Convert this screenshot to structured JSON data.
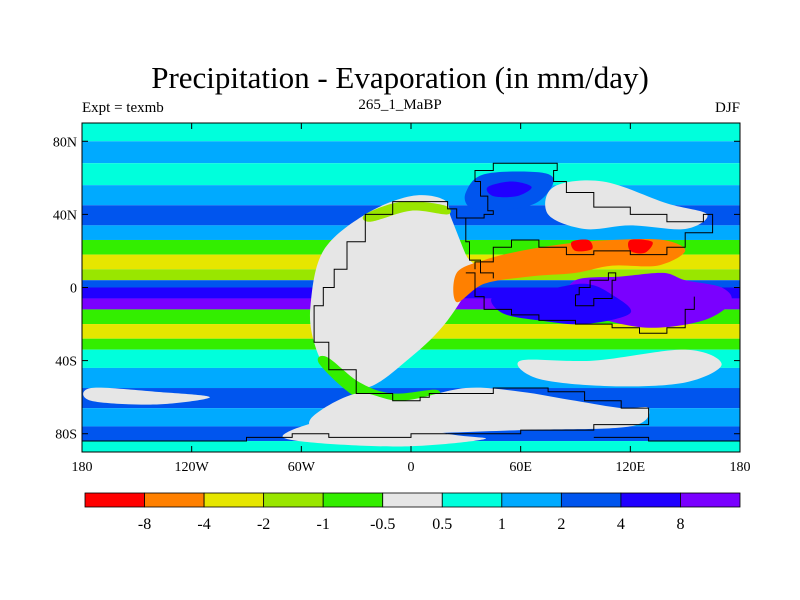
{
  "chart_data": {
    "type": "heatmap",
    "title": "Precipitation - Evaporation (in mm/day)",
    "subtitle_left": "Expt = texmb",
    "subtitle_center": "265_1_MaBP",
    "subtitle_right": "DJF",
    "x_range": [
      -180,
      180
    ],
    "y_range": [
      -90,
      90
    ],
    "x_ticks": [
      {
        "value": -180,
        "label": "180"
      },
      {
        "value": -120,
        "label": "120W"
      },
      {
        "value": -60,
        "label": "60W"
      },
      {
        "value": 0,
        "label": "0"
      },
      {
        "value": 60,
        "label": "60E"
      },
      {
        "value": 120,
        "label": "120E"
      },
      {
        "value": 180,
        "label": "180"
      }
    ],
    "y_ticks": [
      {
        "value": 80,
        "label": "80N"
      },
      {
        "value": 40,
        "label": "40N"
      },
      {
        "value": 0,
        "label": "0"
      },
      {
        "value": -40,
        "label": "40S"
      },
      {
        "value": -80,
        "label": "80S"
      }
    ],
    "colorbar": {
      "colors": [
        "#ff0000",
        "#ff8000",
        "#e6e600",
        "#99e600",
        "#33ee00",
        "#e6e6e6",
        "#00ffdc",
        "#00aaff",
        "#0055ee",
        "#2000ff",
        "#7a00ff"
      ],
      "labels": [
        "-8",
        "-4",
        "-2",
        "-1",
        "-0.5",
        "0.5",
        "1",
        "2",
        "4",
        "8"
      ]
    },
    "bands": [
      {
        "lat": [
          80,
          90
        ],
        "level": 6
      },
      {
        "lat": [
          68,
          80
        ],
        "level": 7
      },
      {
        "lat": [
          56,
          68
        ],
        "level": 6
      },
      {
        "lat": [
          45,
          56
        ],
        "level": 7
      },
      {
        "lat": [
          34,
          45
        ],
        "level": 8
      },
      {
        "lat": [
          26,
          34
        ],
        "level": 7
      },
      {
        "lat": [
          18,
          26
        ],
        "level": 4
      },
      {
        "lat": [
          10,
          18
        ],
        "level": 2
      },
      {
        "lat": [
          4,
          10
        ],
        "level": 3
      },
      {
        "lat": [
          0,
          4
        ],
        "level": 8
      },
      {
        "lat": [
          -6,
          0
        ],
        "level": 9
      },
      {
        "lat": [
          -12,
          -6
        ],
        "level": 10
      },
      {
        "lat": [
          -20,
          -12
        ],
        "level": 4
      },
      {
        "lat": [
          -28,
          -20
        ],
        "level": 2
      },
      {
        "lat": [
          -34,
          -28
        ],
        "level": 4
      },
      {
        "lat": [
          -44,
          -34
        ],
        "level": 6
      },
      {
        "lat": [
          -55,
          -44
        ],
        "level": 7
      },
      {
        "lat": [
          -66,
          -55
        ],
        "level": 8
      },
      {
        "lat": [
          -76,
          -66
        ],
        "level": 7
      },
      {
        "lat": [
          -84,
          -76
        ],
        "level": 8
      },
      {
        "lat": [
          -90,
          -84
        ],
        "level": 6
      }
    ],
    "regions": [
      {
        "name": "western-continent-interior",
        "level": 5,
        "points": [
          [
            -55,
            -10
          ],
          [
            -48,
            20
          ],
          [
            -25,
            40
          ],
          [
            0,
            50
          ],
          [
            18,
            48
          ],
          [
            22,
            38
          ],
          [
            30,
            18
          ],
          [
            35,
            8
          ],
          [
            20,
            -18
          ],
          [
            0,
            -38
          ],
          [
            -25,
            -55
          ],
          [
            -45,
            -45
          ],
          [
            -53,
            -30
          ]
        ]
      },
      {
        "name": "western-continent-north-margin",
        "level": 3,
        "points": [
          [
            -25,
            40
          ],
          [
            -5,
            47
          ],
          [
            18,
            45
          ],
          [
            20,
            40
          ],
          [
            0,
            42
          ],
          [
            -22,
            36
          ]
        ]
      },
      {
        "name": "western-continent-south-margin",
        "level": 4,
        "points": [
          [
            -50,
            -42
          ],
          [
            -30,
            -60
          ],
          [
            -10,
            -64
          ],
          [
            12,
            -62
          ],
          [
            14,
            -56
          ],
          [
            -10,
            -58
          ],
          [
            -28,
            -52
          ],
          [
            -46,
            -38
          ]
        ]
      },
      {
        "name": "southern-continent-interior",
        "level": 5,
        "points": [
          [
            -30,
            -58
          ],
          [
            -5,
            -62
          ],
          [
            30,
            -55
          ],
          [
            60,
            -57
          ],
          [
            90,
            -62
          ],
          [
            115,
            -66
          ],
          [
            130,
            -66
          ],
          [
            120,
            -76
          ],
          [
            60,
            -78
          ],
          [
            0,
            -80
          ],
          [
            -45,
            -80
          ],
          [
            -55,
            -72
          ]
        ]
      },
      {
        "name": "polar-cap",
        "level": 5,
        "points": [
          [
            -70,
            -82
          ],
          [
            -30,
            -70
          ],
          [
            20,
            -80
          ],
          [
            40,
            -83
          ],
          [
            -10,
            -87
          ]
        ]
      },
      {
        "name": "equatorial-drying-belt",
        "level": 1,
        "points": [
          [
            25,
            8
          ],
          [
            40,
            15
          ],
          [
            60,
            20
          ],
          [
            85,
            24
          ],
          [
            110,
            26
          ],
          [
            138,
            26
          ],
          [
            150,
            20
          ],
          [
            135,
            12
          ],
          [
            110,
            12
          ],
          [
            90,
            8
          ],
          [
            65,
            6
          ],
          [
            40,
            2
          ],
          [
            25,
            -8
          ]
        ]
      },
      {
        "name": "asia-red-core",
        "level": 0,
        "points": [
          [
            88,
            25
          ],
          [
            97,
            26
          ],
          [
            99,
            21
          ],
          [
            90,
            20
          ]
        ]
      },
      {
        "name": "asia-red-core-east",
        "level": 0,
        "points": [
          [
            120,
            26
          ],
          [
            132,
            25
          ],
          [
            128,
            19
          ],
          [
            120,
            20
          ]
        ]
      },
      {
        "name": "asia-moist-north",
        "level": 8,
        "points": [
          [
            30,
            52
          ],
          [
            40,
            62
          ],
          [
            70,
            63
          ],
          [
            78,
            58
          ],
          [
            68,
            46
          ],
          [
            45,
            42
          ],
          [
            32,
            44
          ]
        ]
      },
      {
        "name": "asia-moist-core",
        "level": 9,
        "points": [
          [
            42,
            55
          ],
          [
            55,
            58
          ],
          [
            66,
            55
          ],
          [
            58,
            50
          ],
          [
            45,
            50
          ]
        ]
      },
      {
        "name": "asia-interior-dry",
        "level": 5,
        "points": [
          [
            78,
            55
          ],
          [
            105,
            58
          ],
          [
            140,
            46
          ],
          [
            162,
            40
          ],
          [
            150,
            32
          ],
          [
            120,
            34
          ],
          [
            95,
            32
          ],
          [
            75,
            40
          ]
        ]
      },
      {
        "name": "eastern-tropical-wet",
        "level": 10,
        "points": [
          [
            90,
            4
          ],
          [
            115,
            6
          ],
          [
            138,
            8
          ],
          [
            150,
            4
          ],
          [
            170,
            0
          ],
          [
            175,
            -8
          ],
          [
            160,
            -18
          ],
          [
            130,
            -22
          ],
          [
            100,
            -16
          ],
          [
            85,
            -8
          ]
        ]
      },
      {
        "name": "eastern-tropical-core",
        "level": 9,
        "points": [
          [
            45,
            -5
          ],
          [
            70,
            -2
          ],
          [
            95,
            2
          ],
          [
            110,
            -4
          ],
          [
            120,
            -14
          ],
          [
            95,
            -20
          ],
          [
            70,
            -18
          ],
          [
            50,
            -14
          ]
        ]
      },
      {
        "name": "southern-basin-dry",
        "level": 5,
        "points": [
          [
            60,
            -40
          ],
          [
            100,
            -40
          ],
          [
            150,
            -34
          ],
          [
            170,
            -42
          ],
          [
            150,
            -52
          ],
          [
            110,
            -54
          ],
          [
            70,
            -50
          ]
        ]
      },
      {
        "name": "south-pacific-dry-patch",
        "level": 5,
        "points": [
          [
            -175,
            -55
          ],
          [
            -140,
            -57
          ],
          [
            -110,
            -60
          ],
          [
            -140,
            -64
          ],
          [
            -175,
            -62
          ]
        ]
      }
    ],
    "coast_segments": [
      [
        [
          -52,
          -10
        ],
        [
          -48,
          0
        ],
        [
          -42,
          10
        ],
        [
          -35,
          25
        ],
        [
          -25,
          40
        ],
        [
          -10,
          47
        ],
        [
          5,
          47
        ],
        [
          20,
          43
        ],
        [
          25,
          38
        ],
        [
          30,
          25
        ],
        [
          32,
          15
        ],
        [
          38,
          8
        ],
        [
          45,
          5
        ]
      ],
      [
        [
          -52,
          -10
        ],
        [
          -53,
          -30
        ],
        [
          -45,
          -45
        ],
        [
          -30,
          -58
        ],
        [
          -10,
          -62
        ],
        [
          5,
          -60
        ],
        [
          10,
          -58
        ],
        [
          20,
          -58
        ]
      ],
      [
        [
          20,
          -58
        ],
        [
          45,
          -55
        ],
        [
          75,
          -57
        ],
        [
          95,
          -62
        ],
        [
          115,
          -66
        ],
        [
          130,
          -70
        ],
        [
          130,
          -75
        ],
        [
          100,
          -78
        ],
        [
          60,
          -80
        ],
        [
          20,
          -80
        ]
      ],
      [
        [
          20,
          -80
        ],
        [
          0,
          -82
        ],
        [
          -20,
          -82
        ],
        [
          -45,
          -80
        ],
        [
          -65,
          -82
        ],
        [
          -90,
          -84
        ],
        [
          -130,
          -84
        ],
        [
          -180,
          -84
        ]
      ],
      [
        [
          180,
          -84
        ],
        [
          170,
          -84
        ],
        [
          130,
          -82
        ],
        [
          100,
          -82
        ]
      ],
      [
        [
          30,
          8
        ],
        [
          35,
          -5
        ],
        [
          40,
          -12
        ],
        [
          55,
          -15
        ],
        [
          70,
          -18
        ],
        [
          90,
          -20
        ],
        [
          110,
          -22
        ],
        [
          125,
          -25
        ],
        [
          140,
          -22
        ],
        [
          150,
          -12
        ],
        [
          155,
          -5
        ]
      ],
      [
        [
          30,
          38
        ],
        [
          40,
          40
        ],
        [
          45,
          42
        ],
        [
          42,
          50
        ],
        [
          38,
          58
        ],
        [
          35,
          64
        ],
        [
          45,
          68
        ],
        [
          70,
          68
        ],
        [
          80,
          64
        ],
        [
          78,
          58
        ],
        [
          85,
          52
        ],
        [
          100,
          44
        ],
        [
          120,
          40
        ],
        [
          140,
          36
        ],
        [
          160,
          40
        ],
        [
          165,
          30
        ],
        [
          150,
          22
        ],
        [
          140,
          18
        ],
        [
          120,
          20
        ],
        [
          100,
          18
        ],
        [
          85,
          22
        ],
        [
          70,
          26
        ],
        [
          55,
          22
        ],
        [
          45,
          14
        ],
        [
          35,
          10
        ]
      ],
      [
        [
          90,
          -4
        ],
        [
          92,
          0
        ],
        [
          98,
          4
        ],
        [
          108,
          8
        ],
        [
          112,
          4
        ],
        [
          110,
          -6
        ],
        [
          100,
          -10
        ],
        [
          90,
          -8
        ],
        [
          90,
          -4
        ]
      ]
    ]
  }
}
